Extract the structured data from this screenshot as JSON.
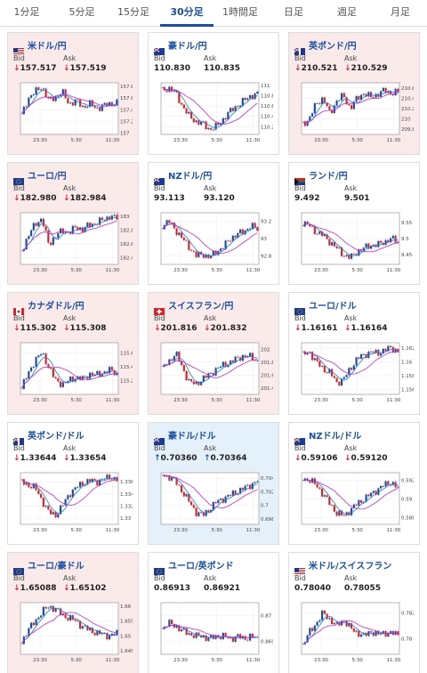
{
  "tabs": [
    "1分足",
    "5分足",
    "15分足",
    "30分足",
    "1時間足",
    "日足",
    "週足",
    "月足"
  ],
  "active_tab": "30分足",
  "bid_label": "Bid",
  "ask_label": "Ask",
  "colors": {
    "down": "#d9262b",
    "up": "#1a4fa3",
    "ma_short": "#1b7bd6",
    "ma_long": "#c02ad0"
  },
  "cards": [
    {
      "pair": "米ドル/円",
      "bid": "157.517",
      "ask": "157.519",
      "dir": "down",
      "bg": "pink",
      "flag": "us-jp",
      "chart_data": {
        "type": "candlestick",
        "yticks": [
          "157.8",
          "157.6",
          "157.4",
          "157.2",
          "157"
        ],
        "ylim": [
          156.98,
          157.86
        ],
        "xticks": [
          "23:30",
          "5:30",
          "11:30"
        ],
        "series": [
          157.3,
          157.6,
          157.7,
          157.8,
          157.55,
          157.62,
          157.7,
          157.5,
          157.55,
          157.45,
          157.5,
          157.42,
          157.47,
          157.5,
          157.52
        ]
      }
    },
    {
      "pair": "豪ドル/円",
      "bid": "110.830",
      "ask": "110.835",
      "dir": "none",
      "bg": "white",
      "flag": "au-jp",
      "chart_data": {
        "type": "candlestick",
        "yticks": [
          "111",
          "110.8",
          "110.6",
          "110.4",
          "110.2"
        ],
        "ylim": [
          110.05,
          111.05
        ],
        "xticks": [
          "23:30",
          "5:30",
          "11:30"
        ],
        "series": [
          110.9,
          110.95,
          110.85,
          110.6,
          110.4,
          110.3,
          110.25,
          110.15,
          110.2,
          110.35,
          110.5,
          110.6,
          110.7,
          110.8,
          110.83
        ]
      }
    },
    {
      "pair": "英ポンド/円",
      "bid": "210.521",
      "ask": "210.529",
      "dir": "down",
      "bg": "pink",
      "flag": "gb-jp",
      "chart_data": {
        "type": "candlestick",
        "yticks": [
          "210.6",
          "210.4",
          "210.2",
          "210",
          "209.8"
        ],
        "ylim": [
          209.7,
          210.7
        ],
        "xticks": [
          "23:30",
          "5:30",
          "11:30"
        ],
        "series": [
          209.9,
          210.0,
          210.3,
          210.4,
          210.1,
          210.35,
          210.45,
          210.2,
          210.4,
          210.5,
          210.42,
          210.48,
          210.55,
          210.5,
          210.52
        ]
      }
    },
    {
      "pair": "ユーロ/円",
      "bid": "182.980",
      "ask": "182.984",
      "dir": "down",
      "bg": "pink",
      "flag": "eu-jp",
      "chart_data": {
        "type": "candlestick",
        "yticks": [
          "183",
          "182.8",
          "182.6",
          "182.4"
        ],
        "ylim": [
          182.3,
          183.05
        ],
        "xticks": [
          "23:30",
          "5:30",
          "11:30"
        ],
        "series": [
          182.5,
          182.7,
          182.9,
          182.95,
          182.6,
          182.7,
          182.8,
          182.75,
          182.85,
          182.8,
          182.88,
          182.9,
          182.95,
          183.0,
          182.98
        ]
      }
    },
    {
      "pair": "NZドル/円",
      "bid": "93.113",
      "ask": "93.120",
      "dir": "none",
      "bg": "white",
      "flag": "nz-jp",
      "chart_data": {
        "type": "candlestick",
        "yticks": [
          "93.2",
          "93",
          "92.8"
        ],
        "ylim": [
          92.7,
          93.3
        ],
        "xticks": [
          "23:30",
          "5:30",
          "11:30"
        ],
        "series": [
          93.15,
          93.2,
          93.1,
          93.0,
          92.9,
          92.8,
          92.82,
          92.78,
          92.85,
          92.9,
          93.0,
          93.05,
          93.08,
          93.15,
          93.11
        ]
      }
    },
    {
      "pair": "ランド/円",
      "bid": "9.492",
      "ask": "9.501",
      "dir": "none",
      "bg": "white",
      "flag": "za-jp",
      "chart_data": {
        "type": "candlestick",
        "yticks": [
          "9.55",
          "9.5",
          "9.45"
        ],
        "ylim": [
          9.42,
          9.58
        ],
        "xticks": [
          "23:30",
          "5:30",
          "11:30"
        ],
        "series": [
          9.55,
          9.54,
          9.52,
          9.51,
          9.49,
          9.47,
          9.45,
          9.44,
          9.46,
          9.47,
          9.48,
          9.48,
          9.49,
          9.5,
          9.49
        ]
      }
    },
    {
      "pair": "カナダドル/円",
      "bid": "115.302",
      "ask": "115.308",
      "dir": "down",
      "bg": "pink",
      "flag": "ca-jp",
      "chart_data": {
        "type": "candlestick",
        "yticks": [
          "115.6",
          "115.4",
          "115.2"
        ],
        "ylim": [
          115.0,
          115.75
        ],
        "xticks": [
          "23:30",
          "5:30",
          "11:30"
        ],
        "series": [
          115.1,
          115.3,
          115.5,
          115.6,
          115.4,
          115.2,
          115.15,
          115.2,
          115.25,
          115.22,
          115.3,
          115.28,
          115.32,
          115.35,
          115.3
        ]
      }
    },
    {
      "pair": "スイスフラン/円",
      "bid": "201.816",
      "ask": "201.832",
      "dir": "down",
      "bg": "pink",
      "flag": "ch-jp",
      "chart_data": {
        "type": "candlestick",
        "yticks": [
          "202",
          "201.8",
          "201.6",
          "201.4"
        ],
        "ylim": [
          201.3,
          202.1
        ],
        "xticks": [
          "23:30",
          "5:30",
          "11:30"
        ],
        "series": [
          201.7,
          201.8,
          201.95,
          201.7,
          201.5,
          201.45,
          201.55,
          201.6,
          201.7,
          201.75,
          201.8,
          201.85,
          201.9,
          201.88,
          201.82
        ]
      }
    },
    {
      "pair": "ユーロ/ドル",
      "bid": "1.16161",
      "ask": "1.16164",
      "dir": "down",
      "bg": "white",
      "flag": "eu-us",
      "chart_data": {
        "type": "candlestick",
        "yticks": [
          "1.162",
          "1.16",
          "1.158",
          "1.156"
        ],
        "ylim": [
          1.1553,
          1.1628
        ],
        "xticks": [
          "23:30",
          "5:30",
          "11:30"
        ],
        "series": [
          1.161,
          1.1615,
          1.16,
          1.159,
          1.1585,
          1.157,
          1.1575,
          1.159,
          1.1605,
          1.161,
          1.1615,
          1.1612,
          1.1618,
          1.162,
          1.1616
        ]
      }
    },
    {
      "pair": "英ポンド/ドル",
      "bid": "1.33644",
      "ask": "1.33654",
      "dir": "down",
      "bg": "white",
      "flag": "gb-us",
      "chart_data": {
        "type": "candlestick",
        "yticks": [
          "1.336",
          "1.334",
          "1.332",
          "1.33"
        ],
        "ylim": [
          1.329,
          1.3375
        ],
        "xticks": [
          "23:30",
          "5:30",
          "11:30"
        ],
        "series": [
          1.336,
          1.3355,
          1.335,
          1.333,
          1.331,
          1.3305,
          1.332,
          1.334,
          1.335,
          1.3358,
          1.3362,
          1.336,
          1.3365,
          1.3368,
          1.3364
        ]
      }
    },
    {
      "pair": "豪ドル/ドル",
      "bid": "0.70360",
      "ask": "0.70364",
      "dir": "up",
      "bg": "blue",
      "flag": "au-us",
      "chart_data": {
        "type": "candlestick",
        "yticks": [
          "0.704",
          "0.702",
          "0.7",
          "0.698"
        ],
        "ylim": [
          0.6972,
          0.7048
        ],
        "xticks": [
          "23:30",
          "5:30",
          "11:30"
        ],
        "series": [
          0.7045,
          0.7042,
          0.7035,
          0.702,
          0.7005,
          0.699,
          0.6985,
          0.6995,
          0.7005,
          0.701,
          0.7015,
          0.702,
          0.7025,
          0.703,
          0.7036
        ]
      }
    },
    {
      "pair": "NZドル/ドル",
      "bid": "0.59106",
      "ask": "0.59120",
      "dir": "down",
      "bg": "white",
      "flag": "nz-us",
      "chart_data": {
        "type": "candlestick",
        "yticks": [
          "0.592",
          "0.59",
          "0.588"
        ],
        "ylim": [
          0.5873,
          0.5928
        ],
        "xticks": [
          "23:30",
          "5:30",
          "11:30"
        ],
        "series": [
          0.5922,
          0.592,
          0.5915,
          0.5905,
          0.5895,
          0.5885,
          0.5882,
          0.5888,
          0.5895,
          0.59,
          0.5905,
          0.591,
          0.5915,
          0.5918,
          0.5911
        ]
      }
    },
    {
      "pair": "ユーロ/豪ドル",
      "bid": "1.65088",
      "ask": "1.65102",
      "dir": "down",
      "bg": "pink",
      "flag": "eu-au",
      "chart_data": {
        "type": "candlestick",
        "yticks": [
          "1.66",
          "1.655",
          "1.65",
          "1.645"
        ],
        "ylim": [
          1.6438,
          1.6612
        ],
        "xticks": [
          "23:30",
          "5:30",
          "11:30"
        ],
        "series": [
          1.648,
          1.652,
          1.655,
          1.658,
          1.66,
          1.659,
          1.657,
          1.656,
          1.655,
          1.653,
          1.652,
          1.651,
          1.6505,
          1.65,
          1.6509
        ]
      }
    },
    {
      "pair": "ユーロ/英ポンド",
      "bid": "0.86913",
      "ask": "0.86921",
      "dir": "none",
      "bg": "white",
      "flag": "eu-gb",
      "chart_data": {
        "type": "candlestick",
        "yticks": [
          "0.87",
          "0.869"
        ],
        "ylim": [
          0.8685,
          0.8705
        ],
        "xticks": [
          "23:30",
          "5:30",
          "11:30"
        ],
        "series": [
          0.8695,
          0.8697,
          0.8696,
          0.8694,
          0.8693,
          0.8692,
          0.8692,
          0.8691,
          0.8692,
          0.8692,
          0.8691,
          0.8692,
          0.8691,
          0.8692,
          0.8691
        ]
      }
    },
    {
      "pair": "米ドル/スイスフラン",
      "bid": "0.78040",
      "ask": "0.78055",
      "dir": "none",
      "bg": "white",
      "flag": "us-ch",
      "chart_data": {
        "type": "candlestick",
        "yticks": [
          "0.782",
          "0.78"
        ],
        "ylim": [
          0.7788,
          0.7828
        ],
        "xticks": [
          "23:30",
          "5:30",
          "11:30"
        ],
        "series": [
          0.7795,
          0.7805,
          0.7812,
          0.782,
          0.7815,
          0.781,
          0.7815,
          0.7808,
          0.7805,
          0.7802,
          0.7806,
          0.7803,
          0.7805,
          0.7804,
          0.7804
        ]
      }
    }
  ]
}
